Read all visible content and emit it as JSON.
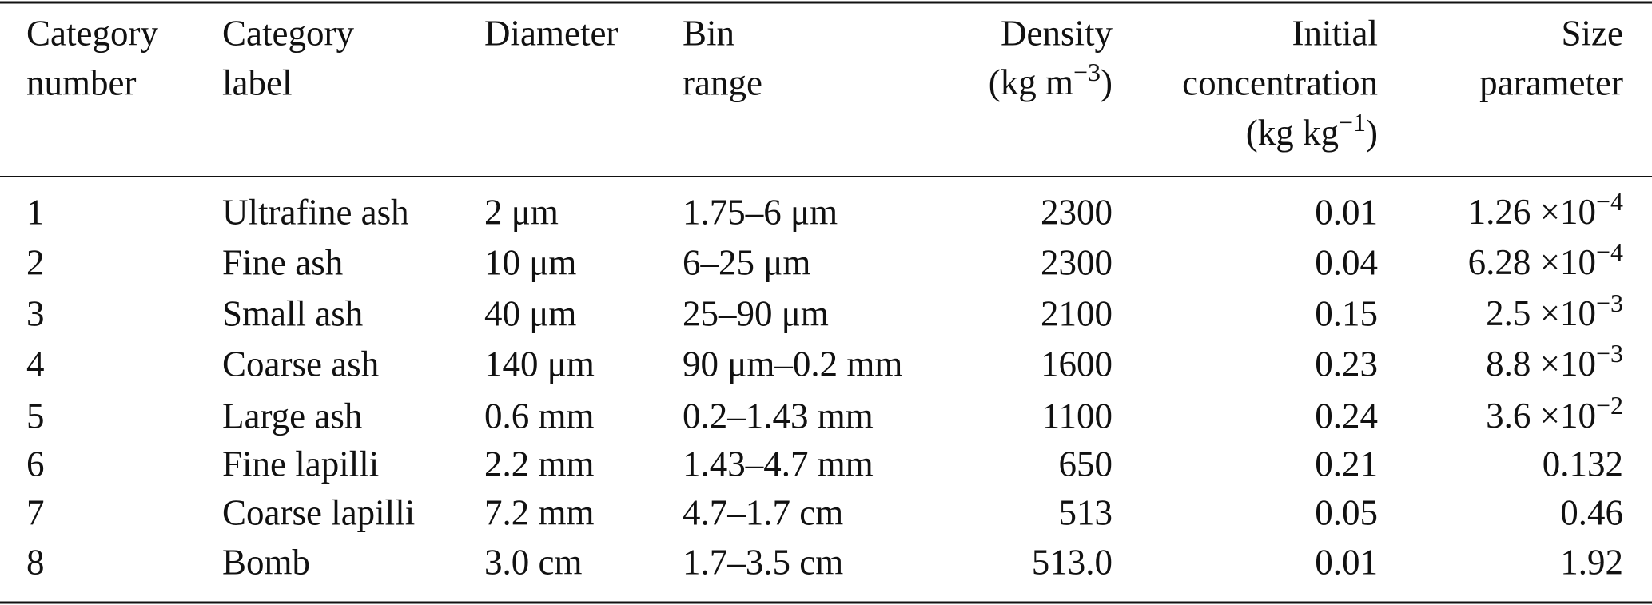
{
  "table": {
    "headers": [
      {
        "lines": [
          "Category",
          "number"
        ]
      },
      {
        "lines": [
          "Category",
          "label"
        ]
      },
      {
        "lines": [
          "Diameter"
        ]
      },
      {
        "lines": [
          "Bin",
          "range"
        ]
      },
      {
        "lines": [
          "Density"
        ],
        "unit": {
          "open": "(kg m",
          "exp": "−3",
          "close": ")"
        }
      },
      {
        "lines": [
          "Initial",
          "concentration"
        ],
        "unit": {
          "open": "(kg kg",
          "exp": "−1",
          "close": ")"
        }
      },
      {
        "lines": [
          "Size",
          "parameter"
        ]
      }
    ],
    "rows": [
      [
        "1",
        "Ultrafine ash",
        "2 μm",
        "1.75–6 μm",
        "2300",
        "0.01",
        {
          "mantissa": "1.26 ×10",
          "exponent": "−4"
        }
      ],
      [
        "2",
        "Fine ash",
        "10 μm",
        "6–25 μm",
        "2300",
        "0.04",
        {
          "mantissa": "6.28 ×10",
          "exponent": "−4"
        }
      ],
      [
        "3",
        "Small ash",
        "40 μm",
        "25–90 μm",
        "2100",
        "0.15",
        {
          "mantissa": "2.5 ×10",
          "exponent": "−3"
        }
      ],
      [
        "4",
        "Coarse ash",
        "140 μm",
        "90 μm–0.2 mm",
        "1600",
        "0.23",
        {
          "mantissa": "8.8 ×10",
          "exponent": "−3"
        }
      ],
      [
        "5",
        "Large ash",
        "0.6 mm",
        "0.2–1.43 mm",
        "1100",
        "0.24",
        {
          "mantissa": "3.6 ×10",
          "exponent": "−2"
        }
      ],
      [
        "6",
        "Fine lapilli",
        "2.2 mm",
        "1.43–4.7 mm",
        "650",
        "0.21",
        "0.132"
      ],
      [
        "7",
        "Coarse lapilli",
        "7.2 mm",
        "4.7–1.7 cm",
        "513",
        "0.05",
        "0.46"
      ],
      [
        "8",
        "Bomb",
        "3.0 cm",
        "1.7–3.5 cm",
        "513.0",
        "0.01",
        "1.92"
      ]
    ]
  }
}
